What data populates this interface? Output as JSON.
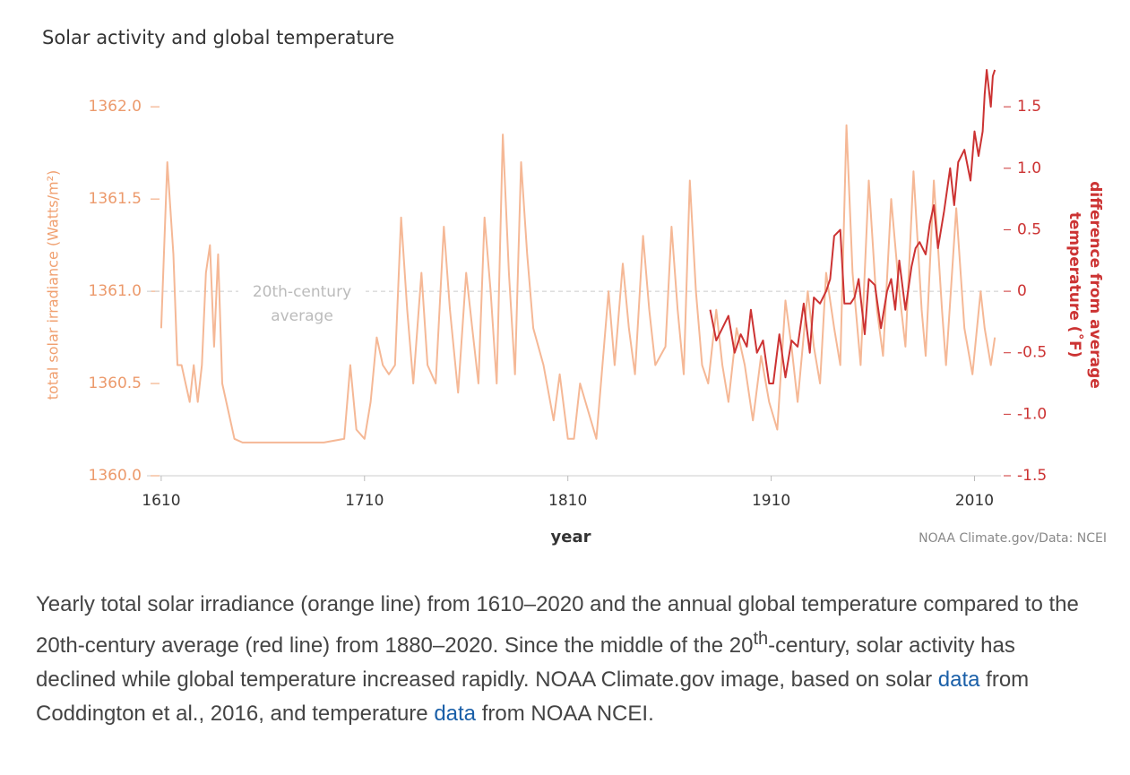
{
  "chart_data": {
    "type": "line",
    "title": "Solar activity and global temperature",
    "xlabel": "year",
    "ylabel": "total solar irradiance (Watts/m²)",
    "y2label": [
      "difference from average",
      "temperature (˚F)"
    ],
    "source": "NOAA Climate.gov/Data: NCEI",
    "xlim": [
      1603,
      2023
    ],
    "xticks": [
      1610,
      1710,
      1810,
      1910,
      2010
    ],
    "ylim": [
      1360,
      1362.2
    ],
    "yticks": [
      {
        "value": 1360,
        "label": "1360.0"
      },
      {
        "value": 1360.5,
        "label": "1360.5"
      },
      {
        "value": 1361,
        "label": "1361.0"
      },
      {
        "value": 1361.5,
        "label": "1361.5"
      },
      {
        "value": 1362,
        "label": "1362.0"
      }
    ],
    "y2lim": [
      -1.5,
      1.8
    ],
    "y2ticks": [
      {
        "value": -1.5,
        "label": "-1.5"
      },
      {
        "value": -1,
        "label": "-1.0"
      },
      {
        "value": -0.5,
        "label": "-0.5"
      },
      0,
      {
        "value": 0.5,
        "label": "0.5"
      },
      {
        "value": 1,
        "label": "1.0"
      },
      {
        "value": 1.5,
        "label": "1.5"
      }
    ],
    "reference": {
      "value": 1361,
      "text": [
        "20th-century",
        "average"
      ]
    },
    "series": [
      {
        "name": "total solar irradiance",
        "color": "#f5b896",
        "x": [
          1610,
          1613,
          1616,
          1618,
          1620,
          1622,
          1624,
          1626,
          1628,
          1630,
          1632,
          1634,
          1636,
          1638,
          1640,
          1643,
          1646,
          1650,
          1660,
          1670,
          1680,
          1690,
          1700,
          1703,
          1706,
          1710,
          1713,
          1716,
          1719,
          1722,
          1725,
          1728,
          1731,
          1734,
          1738,
          1741,
          1745,
          1749,
          1752,
          1756,
          1760,
          1763,
          1766,
          1769,
          1772,
          1775,
          1778,
          1781,
          1784,
          1787,
          1790,
          1793,
          1798,
          1803,
          1806,
          1810,
          1813,
          1816,
          1820,
          1824,
          1827,
          1830,
          1833,
          1837,
          1840,
          1843,
          1847,
          1850,
          1853,
          1858,
          1861,
          1864,
          1867,
          1870,
          1873,
          1876,
          1879,
          1883,
          1886,
          1889,
          1893,
          1897,
          1901,
          1905,
          1909,
          1913,
          1917,
          1920,
          1923,
          1928,
          1931,
          1934,
          1937,
          1941,
          1944,
          1947,
          1950,
          1954,
          1958,
          1962,
          1965,
          1969,
          1973,
          1976,
          1980,
          1984,
          1986,
          1990,
          1994,
          1996,
          2001,
          2005,
          2009,
          2013,
          2015,
          2018,
          2020
        ],
        "values": [
          1360.8,
          1361.7,
          1361.2,
          1360.6,
          1360.6,
          1360.5,
          1360.4,
          1360.6,
          1360.4,
          1360.6,
          1361.1,
          1361.25,
          1360.7,
          1361.2,
          1360.5,
          1360.35,
          1360.2,
          1360.18,
          1360.18,
          1360.18,
          1360.18,
          1360.18,
          1360.2,
          1360.6,
          1360.25,
          1360.2,
          1360.4,
          1360.75,
          1360.6,
          1360.55,
          1360.6,
          1361.4,
          1360.9,
          1360.5,
          1361.1,
          1360.6,
          1360.5,
          1361.35,
          1360.9,
          1360.45,
          1361.1,
          1360.8,
          1360.5,
          1361.4,
          1361.0,
          1360.5,
          1361.85,
          1361.1,
          1360.55,
          1361.7,
          1361.2,
          1360.8,
          1360.6,
          1360.3,
          1360.55,
          1360.2,
          1360.2,
          1360.5,
          1360.35,
          1360.2,
          1360.6,
          1361.0,
          1360.6,
          1361.15,
          1360.8,
          1360.55,
          1361.3,
          1360.9,
          1360.6,
          1360.7,
          1361.35,
          1360.9,
          1360.55,
          1361.6,
          1361.0,
          1360.6,
          1360.5,
          1360.9,
          1360.6,
          1360.4,
          1360.8,
          1360.6,
          1360.3,
          1360.65,
          1360.4,
          1360.25,
          1360.95,
          1360.7,
          1360.4,
          1361.0,
          1360.7,
          1360.5,
          1361.1,
          1360.8,
          1360.6,
          1361.9,
          1361.1,
          1360.6,
          1361.6,
          1360.9,
          1360.65,
          1361.5,
          1361.0,
          1360.7,
          1361.65,
          1360.9,
          1360.65,
          1361.6,
          1360.9,
          1360.6,
          1361.45,
          1360.8,
          1360.55,
          1361.0,
          1360.8,
          1360.6,
          1360.75
        ]
      },
      {
        "name": "global temperature difference",
        "color": "#cc3333",
        "axis": "y2",
        "x": [
          1880,
          1883,
          1886,
          1889,
          1892,
          1895,
          1898,
          1900,
          1903,
          1906,
          1909,
          1911,
          1914,
          1917,
          1920,
          1923,
          1926,
          1929,
          1931,
          1934,
          1937,
          1939,
          1941,
          1944,
          1946,
          1949,
          1951,
          1953,
          1956,
          1958,
          1961,
          1964,
          1967,
          1969,
          1971,
          1973,
          1976,
          1979,
          1981,
          1983,
          1986,
          1988,
          1990,
          1992,
          1995,
          1998,
          2000,
          2002,
          2005,
          2008,
          2010,
          2012,
          2014,
          2015,
          2016,
          2017,
          2018,
          2019,
          2020
        ],
        "values": [
          -0.15,
          -0.4,
          -0.3,
          -0.2,
          -0.5,
          -0.35,
          -0.45,
          -0.15,
          -0.5,
          -0.4,
          -0.75,
          -0.75,
          -0.35,
          -0.7,
          -0.4,
          -0.45,
          -0.1,
          -0.5,
          -0.05,
          -0.1,
          0,
          0.1,
          0.45,
          0.5,
          -0.1,
          -0.1,
          -0.05,
          0.1,
          -0.35,
          0.1,
          0.05,
          -0.3,
          0,
          0.1,
          -0.15,
          0.25,
          -0.15,
          0.2,
          0.35,
          0.4,
          0.3,
          0.55,
          0.7,
          0.35,
          0.65,
          1.0,
          0.7,
          1.05,
          1.15,
          0.9,
          1.3,
          1.1,
          1.3,
          1.6,
          1.8,
          1.65,
          1.5,
          1.75,
          1.8
        ]
      }
    ]
  },
  "caption": [
    "Yearly total solar irradiance (orange line) from 1610–2020 and the annual global temperature compared to the 20th-century average (red line) from 1880–2020. Since the middle of the 20",
    "th",
    "-century, solar activity has declined while global temperature increased rapidly. NOAA Climate.gov image, based on solar ",
    "data",
    " from Coddington et al., 2016, and temperature ",
    "data",
    " from NOAA NCEI."
  ]
}
